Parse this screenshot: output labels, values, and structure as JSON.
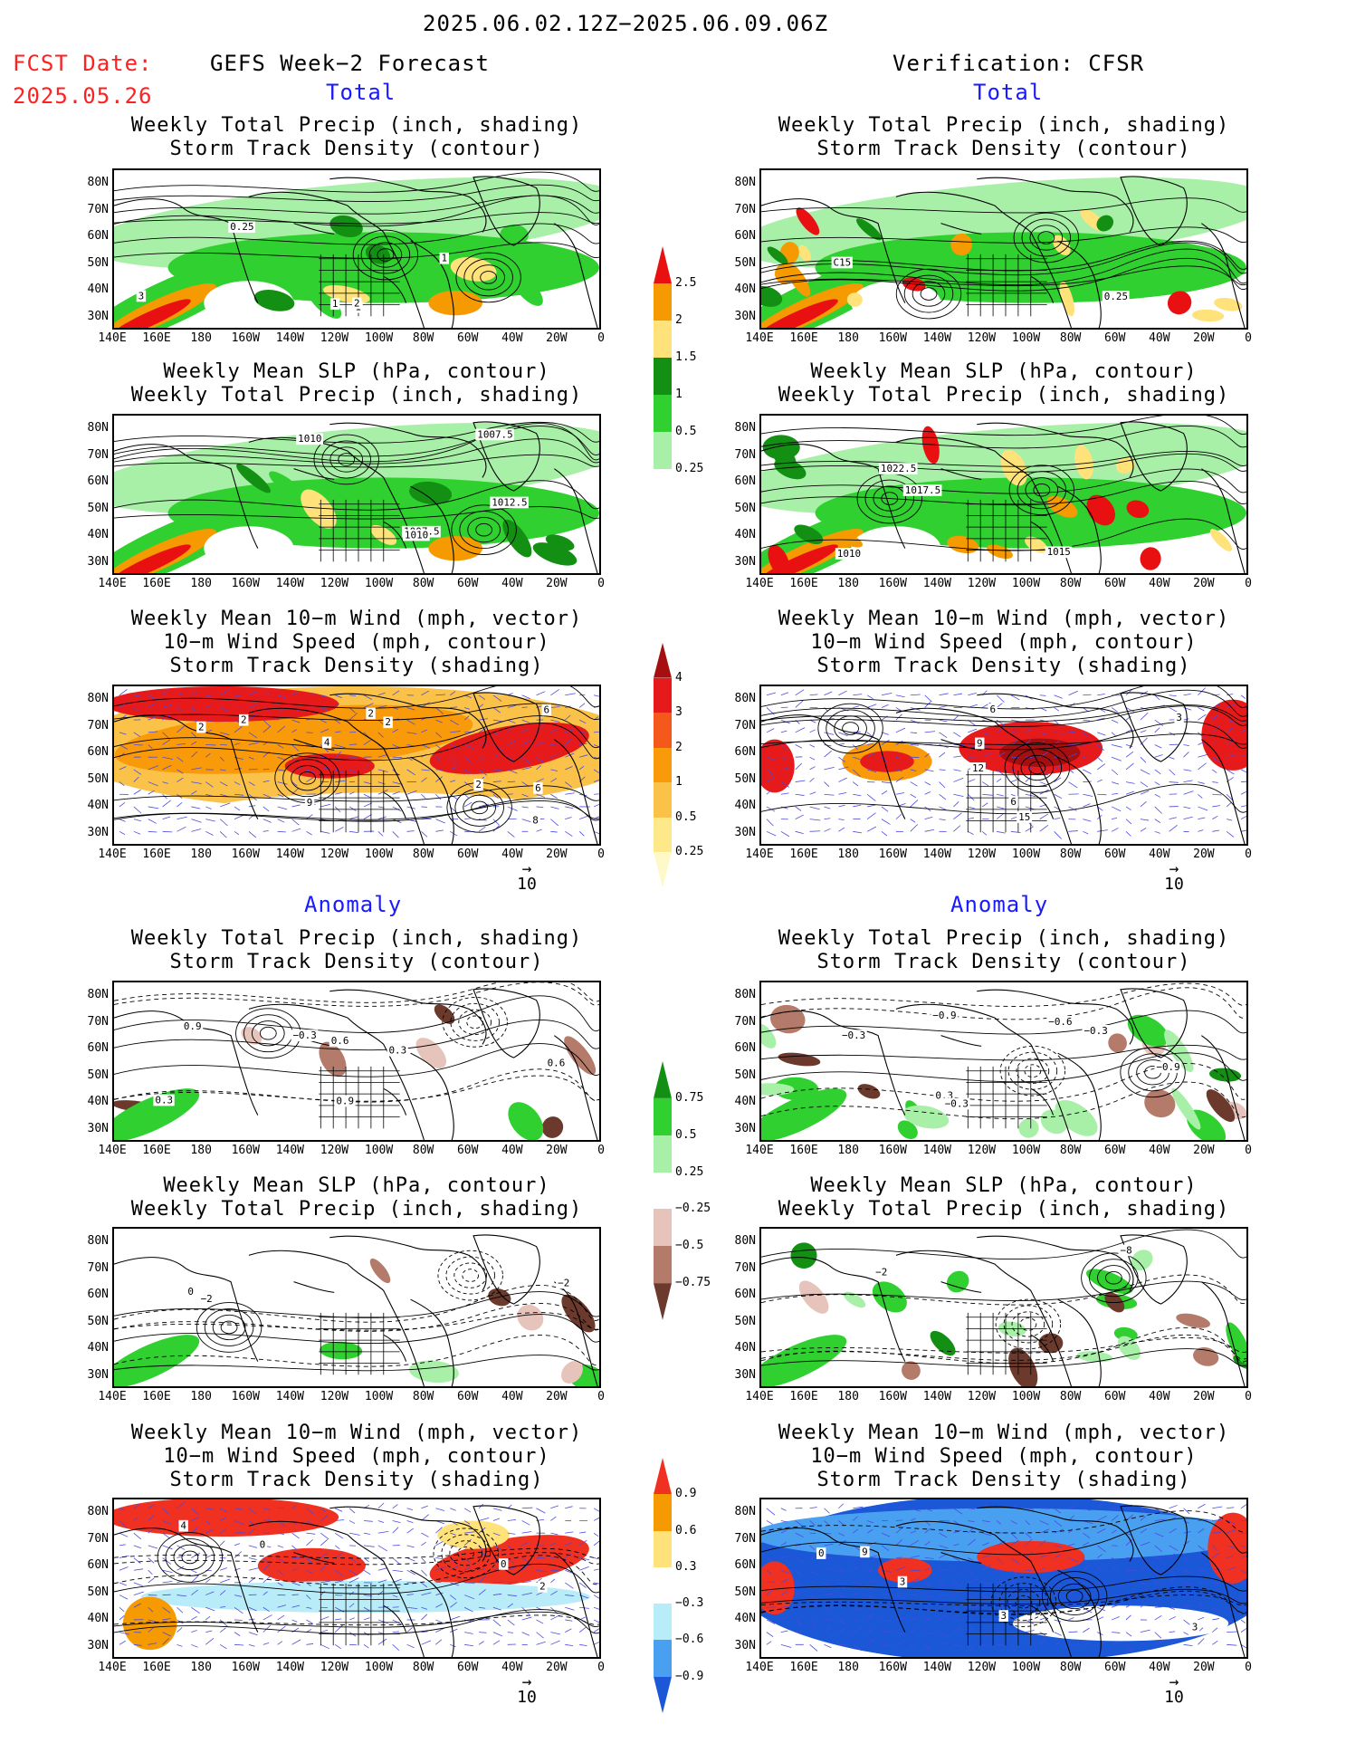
{
  "header": {
    "period": "2025.06.02.12Z−2025.06.09.06Z",
    "fcst_label": "FCST Date:",
    "fcst_date": "2025.05.26",
    "left_title": "GEFS Week−2 Forecast",
    "right_title": "Verification: CFSR",
    "total_label": "Total",
    "anomaly_label": "Anomaly"
  },
  "panel_titles": {
    "precip_track": [
      "Weekly Total Precip (inch, shading)",
      "Storm Track Density (contour)"
    ],
    "slp_precip": [
      "Weekly Mean SLP (hPa, contour)",
      "Weekly Total Precip (inch, shading)"
    ],
    "wind_track": [
      "Weekly Mean 10−m Wind (mph, vector)",
      "10−m Wind Speed (mph, contour)",
      "Storm Track Density (shading)"
    ]
  },
  "axes": {
    "lat_labels": [
      "80N",
      "70N",
      "60N",
      "50N",
      "40N",
      "30N"
    ],
    "lon_labels": [
      "140E",
      "160E",
      "180",
      "160W",
      "140W",
      "120W",
      "100W",
      "80W",
      "60W",
      "40W",
      "20W",
      "0"
    ]
  },
  "vector_ref": "10",
  "colorbars": {
    "precip_total": {
      "labels": [
        "2.5",
        "2",
        "1.5",
        "1",
        "0.5",
        "0.25"
      ],
      "colors": [
        "#e81010",
        "#f59a00",
        "#ffe27a",
        "#138f13",
        "#30d030",
        "#a8f0a8"
      ]
    },
    "track_total": {
      "labels": [
        "4",
        "3",
        "2",
        "1",
        "0.5",
        "0.25"
      ],
      "colors": [
        "#a50f0f",
        "#e61a1a",
        "#f5581b",
        "#f99a0a",
        "#fbc24a",
        "#fde88a",
        "#fff8c8"
      ]
    },
    "precip_anom": {
      "labels": [
        "0.75",
        "0.5",
        "0.25",
        "−0.25",
        "−0.5",
        "−0.75"
      ],
      "colors": [
        "#138f13",
        "#30d030",
        "#a8f0a8",
        "#ffffff",
        "#e6c4bc",
        "#b47a6a",
        "#6b3a2c"
      ]
    },
    "track_anom": {
      "labels": [
        "0.9",
        "0.6",
        "0.3",
        "−0.3",
        "−0.6",
        "−0.9"
      ],
      "colors": [
        "#f03020",
        "#f59a00",
        "#ffe27a",
        "#ffffff",
        "#b8ecf8",
        "#4aa0f0",
        "#1a58d8"
      ]
    }
  },
  "contour_labels": {
    "gefs_total_precip": [
      "1",
      "1",
      "3",
      "2",
      "1",
      "0.25"
    ],
    "cfsr_total_precip": [
      "0.25",
      "C15"
    ],
    "gefs_total_slp": [
      "1010",
      "1007.5",
      "1007.5",
      "1012.5",
      "1010"
    ],
    "cfsr_total_slp": [
      "1015",
      "1017.5",
      "1010",
      "1022.5"
    ],
    "gefs_total_wind": [
      "2",
      "2",
      "2",
      "2",
      "2",
      "4",
      "6",
      "6",
      "9",
      "8"
    ],
    "cfsr_total_wind": [
      "6",
      "9",
      "3",
      "15",
      "12",
      "6"
    ],
    "gefs_anom_precip": [
      "0.9",
      "0.6",
      "−0.3",
      "0.9",
      "0.6",
      "0.3",
      "0.3"
    ],
    "cfsr_anom_precip": [
      "−0.9",
      "−0.6",
      "−0.3",
      "−0.9",
      "0.3",
      "−0.3",
      "−0.3"
    ],
    "gefs_anom_slp": [
      "−2",
      "0",
      "−2"
    ],
    "cfsr_anom_slp": [
      "−2",
      "−8"
    ],
    "gefs_anom_wind": [
      "0",
      "0",
      "2",
      "4"
    ],
    "cfsr_anom_wind": [
      "0",
      "3",
      "3",
      "3",
      "9"
    ]
  }
}
